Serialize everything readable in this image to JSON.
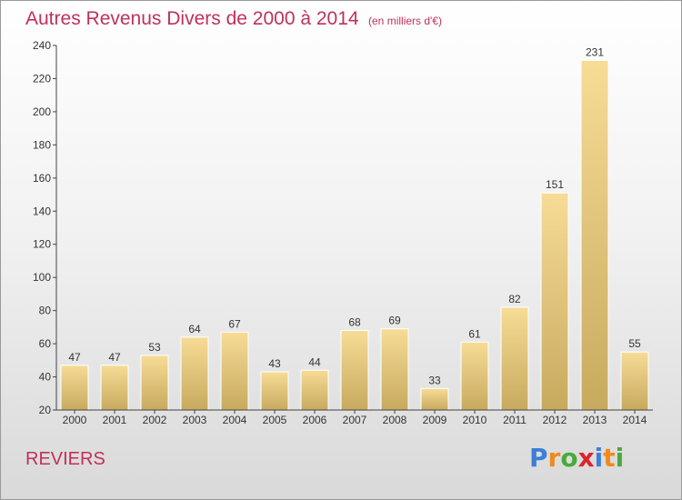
{
  "title": "Autres Revenus Divers de 2000 à 2014",
  "subtitle": "(en milliers d'€)",
  "commune": "REVIERS",
  "logo": {
    "text": "Proxiti",
    "letters": [
      {
        "char": "P",
        "color": "#3d7fd6"
      },
      {
        "char": "r",
        "color": "#f08a1c"
      },
      {
        "char": "o",
        "color": "#4aaa3c"
      },
      {
        "char": "x",
        "color": "#d9262c"
      },
      {
        "char": "i",
        "color": "#3d7fd6"
      },
      {
        "char": "t",
        "color": "#f08a1c"
      },
      {
        "char": "i",
        "color": "#4aaa3c"
      }
    ]
  },
  "colors": {
    "title": "#c0305a",
    "bar_top": "#f7dc96",
    "bar_bottom": "#c8aa5e",
    "axis": "#444444",
    "text": "#333333"
  },
  "chart_data": {
    "type": "bar",
    "categories": [
      "2000",
      "2001",
      "2002",
      "2003",
      "2004",
      "2005",
      "2006",
      "2007",
      "2008",
      "2009",
      "2010",
      "2011",
      "2012",
      "2013",
      "2014"
    ],
    "values": [
      47,
      47,
      53,
      64,
      67,
      43,
      44,
      68,
      69,
      33,
      61,
      82,
      151,
      231,
      55
    ],
    "ylim": [
      20,
      240
    ],
    "yticks": [
      20,
      40,
      60,
      80,
      100,
      120,
      140,
      160,
      180,
      200,
      220,
      240
    ],
    "data_labels": true
  }
}
